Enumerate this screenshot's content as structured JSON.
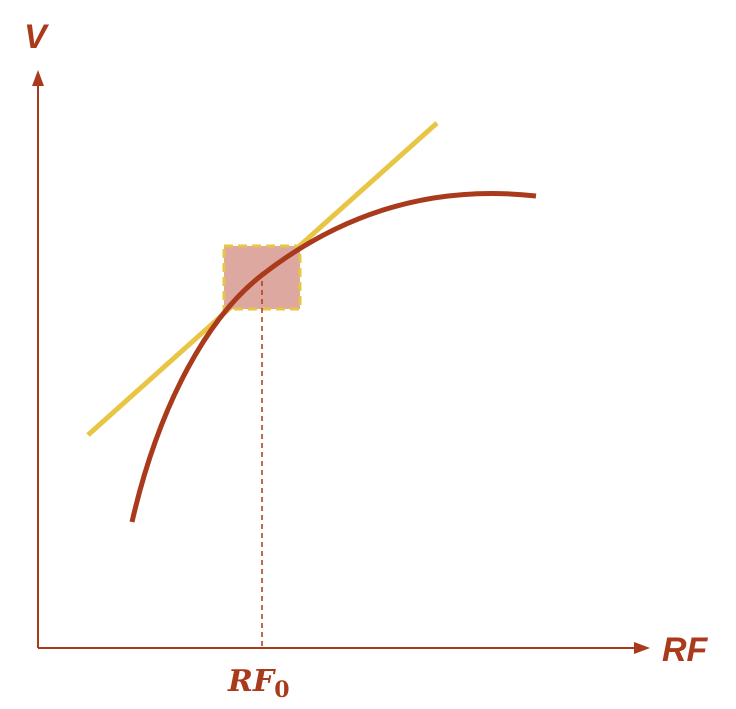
{
  "labels": {
    "y_axis": "V",
    "x_axis": "RF",
    "point_main": "RF",
    "point_sub": "0"
  },
  "colors": {
    "axis": "#a93a1c",
    "curve": "#a93a1c",
    "tangent": "#e8c545",
    "box_fill": "#dca8a0",
    "box_border": "#e8c545",
    "guide": "#a93a1c"
  }
}
